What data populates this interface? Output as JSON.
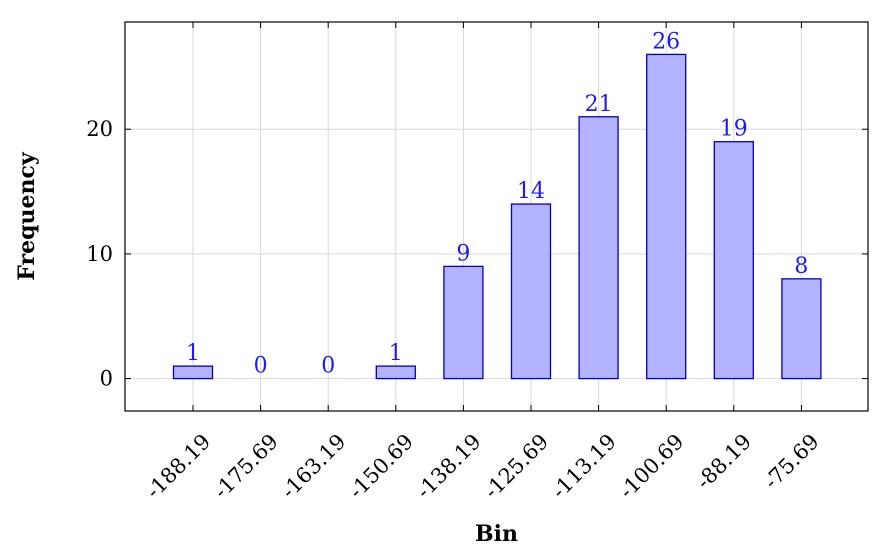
{
  "colors": {
    "bar_fill": "#b3b3ff",
    "bar_stroke": "#0000cc",
    "label": "#1a1aff",
    "grid": "#d9d9d9",
    "axis": "#000000"
  },
  "chart_data": {
    "type": "bar",
    "title": "",
    "xlabel": "Bin",
    "ylabel": "Frequency",
    "categories": [
      "-188.19",
      "-175.69",
      "-163.19",
      "-150.69",
      "-138.19",
      "-125.69",
      "-113.19",
      "-100.69",
      "-88.19",
      "-75.69"
    ],
    "values": [
      1,
      0,
      0,
      1,
      9,
      14,
      21,
      26,
      19,
      8
    ],
    "ylim": [
      -2.6,
      28.6
    ],
    "yticks": [
      0,
      10,
      20
    ],
    "grid": true,
    "legend": "none"
  }
}
